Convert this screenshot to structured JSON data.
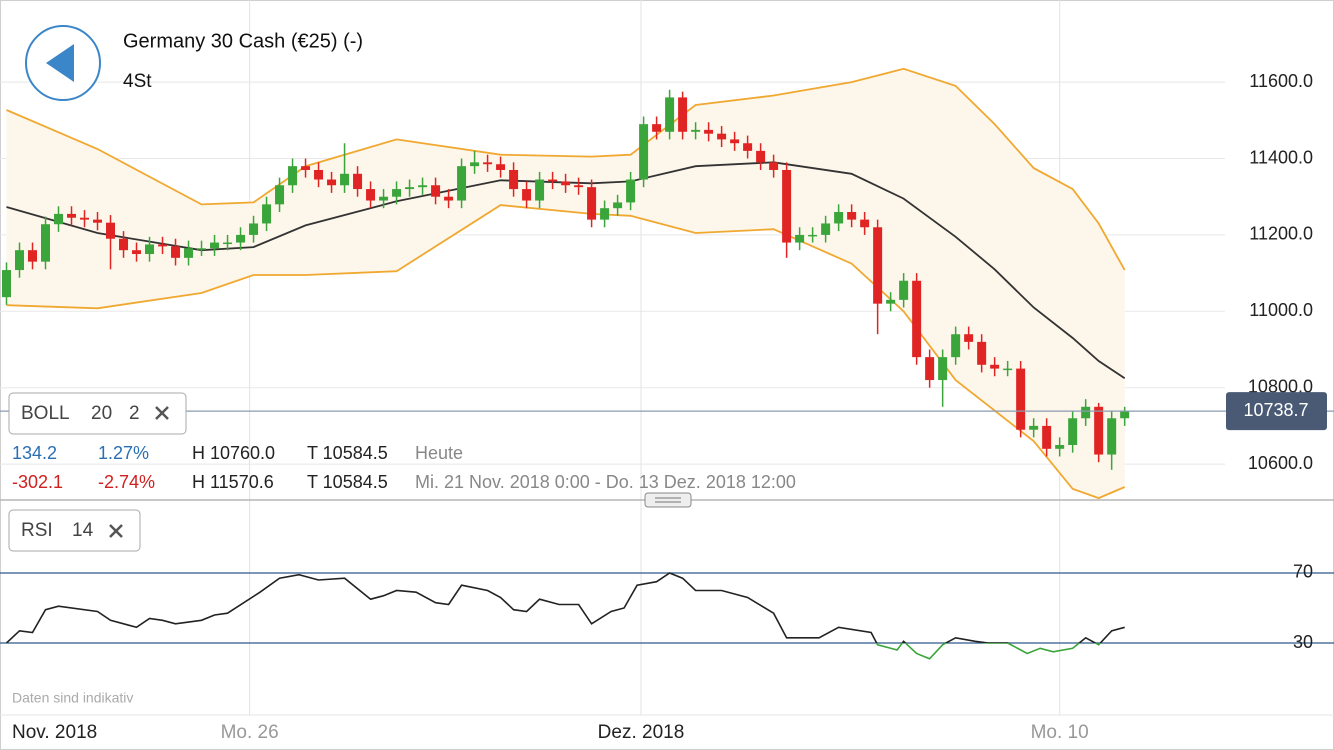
{
  "header": {
    "title": "Germany 30 Cash (€25) (-)",
    "interval": "4St"
  },
  "boll_box": {
    "name": "BOLL",
    "period": 20,
    "stddev": 2
  },
  "rsi_box": {
    "name": "RSI",
    "period": 14
  },
  "info": [
    {
      "change": 134.2,
      "change_pct": "1.27%",
      "high": "H 10760.0",
      "low": "T 10584.5",
      "range": "Heute"
    },
    {
      "change": -302.1,
      "change_pct": "-2.74%",
      "high": "H 11570.6",
      "low": "T 10584.5",
      "range": "Mi. 21 Nov. 2018 0:00 - Do. 13 Dez. 2018 12:00"
    }
  ],
  "note": "Daten sind indikativ",
  "chart_data": [
    {
      "type": "candlestick",
      "up_color": "#3aa53a",
      "down_color": "#e02424",
      "open": [
        11037,
        11108,
        11160,
        11130,
        11228,
        11255,
        11245,
        11240,
        11232,
        11190,
        11160,
        11150,
        11175,
        11170,
        11140,
        11165,
        11165,
        11180,
        11180,
        11200,
        11230,
        11280,
        11330,
        11380,
        11370,
        11345,
        11330,
        11360,
        11320,
        11290,
        11300,
        11320,
        11325,
        11330,
        11300,
        11290,
        11380,
        11390,
        11385,
        11370,
        11320,
        11290,
        11345,
        11340,
        11330,
        11325,
        11240,
        11270,
        11285,
        11345,
        11490,
        11470,
        11560,
        11470,
        11475,
        11465,
        11450,
        11440,
        11420,
        11390,
        11370,
        11180,
        11200,
        11200,
        11230,
        11260,
        11240,
        11220,
        11020,
        11030,
        11080,
        10880,
        10820,
        10880,
        10940,
        10920,
        10860,
        10850,
        10850,
        10690,
        10700,
        10640,
        10650,
        10720,
        10750,
        10625,
        10720
      ],
      "high": [
        11128,
        11180,
        11180,
        11248,
        11275,
        11275,
        11265,
        11260,
        11252,
        11210,
        11180,
        11195,
        11195,
        11190,
        11185,
        11185,
        11200,
        11200,
        11220,
        11250,
        11300,
        11350,
        11400,
        11400,
        11390,
        11365,
        11440,
        11380,
        11340,
        11320,
        11340,
        11345,
        11350,
        11350,
        11320,
        11400,
        11420,
        11410,
        11405,
        11390,
        11340,
        11365,
        11365,
        11360,
        11350,
        11345,
        11290,
        11305,
        11365,
        11510,
        11510,
        11580,
        11575,
        11495,
        11495,
        11485,
        11470,
        11460,
        11440,
        11410,
        11390,
        11220,
        11220,
        11250,
        11280,
        11280,
        11260,
        11240,
        11050,
        11100,
        11100,
        10900,
        10900,
        10960,
        10960,
        10940,
        10880,
        10870,
        10870,
        10720,
        10720,
        10670,
        10740,
        10770,
        10760,
        10740,
        10750
      ],
      "low": [
        11017,
        11088,
        11110,
        11110,
        11208,
        11225,
        11220,
        11212,
        11110,
        11140,
        11130,
        11130,
        11150,
        11120,
        11120,
        11145,
        11145,
        11160,
        11160,
        11180,
        11210,
        11260,
        11310,
        11350,
        11325,
        11310,
        11310,
        11300,
        11270,
        11270,
        11280,
        11300,
        11305,
        11280,
        11270,
        11270,
        11360,
        11365,
        11350,
        11300,
        11270,
        11270,
        11320,
        11310,
        11305,
        11220,
        11220,
        11250,
        11265,
        11325,
        11450,
        11450,
        11450,
        11450,
        11445,
        11430,
        11420,
        11400,
        11370,
        11350,
        11140,
        11160,
        11180,
        11180,
        11210,
        11220,
        11200,
        10940,
        11000,
        11010,
        10860,
        10800,
        10750,
        10860,
        10900,
        10840,
        10830,
        10830,
        10670,
        10670,
        10620,
        10620,
        10630,
        10700,
        10605,
        10585,
        10700
      ],
      "close": [
        11108,
        11160,
        11130,
        11228,
        11255,
        11245,
        11240,
        11232,
        11190,
        11160,
        11150,
        11175,
        11170,
        11140,
        11165,
        11165,
        11180,
        11180,
        11200,
        11230,
        11280,
        11330,
        11380,
        11370,
        11345,
        11330,
        11360,
        11320,
        11290,
        11300,
        11320,
        11325,
        11330,
        11300,
        11290,
        11380,
        11390,
        11385,
        11370,
        11320,
        11290,
        11345,
        11340,
        11330,
        11325,
        11240,
        11270,
        11285,
        11345,
        11490,
        11470,
        11560,
        11470,
        11475,
        11465,
        11450,
        11440,
        11420,
        11390,
        11370,
        11180,
        11200,
        11200,
        11230,
        11260,
        11240,
        11220,
        11020,
        11030,
        11080,
        10880,
        10820,
        10880,
        10940,
        10920,
        10860,
        10850,
        10850,
        10690,
        10700,
        10640,
        10650,
        10720,
        10750,
        10625,
        10720,
        10738.7
      ],
      "overlays": [
        {
          "color": "#f0a830",
          "x": [
            0,
            7,
            15,
            19,
            23,
            30,
            38,
            45,
            48,
            53,
            59,
            65,
            69,
            73,
            76,
            79,
            82,
            84,
            86
          ],
          "values": [
            11527,
            11425,
            11280,
            11285,
            11380,
            11450,
            11410,
            11405,
            11410,
            11540,
            11565,
            11600,
            11635,
            11590,
            11490,
            11375,
            11320,
            11230,
            11108
          ]
        },
        {
          "color": "#333333",
          "x": [
            0,
            7,
            15,
            19,
            23,
            30,
            38,
            45,
            48,
            53,
            59,
            65,
            69,
            73,
            76,
            79,
            82,
            84,
            86
          ],
          "values": [
            11273,
            11205,
            11160,
            11168,
            11225,
            11288,
            11343,
            11335,
            11340,
            11380,
            11390,
            11360,
            11295,
            11195,
            11110,
            11010,
            10930,
            10870,
            10825
          ]
        },
        {
          "color": "#f0a830",
          "x": [
            0,
            7,
            15,
            19,
            23,
            30,
            38,
            45,
            48,
            53,
            59,
            65,
            69,
            73,
            76,
            79,
            82,
            84,
            86
          ],
          "values": [
            11016,
            11008,
            11048,
            11095,
            11095,
            11105,
            11278,
            11255,
            11250,
            11205,
            11215,
            11125,
            11000,
            10820,
            10740,
            10660,
            10535,
            10511,
            10540
          ]
        }
      ],
      "band_fill": "#fdf6ea",
      "xlim": [
        -0.5,
        102.1
      ],
      "ylim": [
        10506,
        11815
      ],
      "yticks": [
        {
          "value": 10600,
          "label": "10600.0"
        },
        {
          "value": 10800,
          "label": "10800.0"
        },
        {
          "value": 11000,
          "label": "11000.0"
        },
        {
          "value": 11200,
          "label": "11200.0"
        },
        {
          "value": 11400,
          "label": "11400.0"
        },
        {
          "value": 11600,
          "label": "11600.0"
        }
      ],
      "xticks": [
        {
          "value": 18.7,
          "label": "Mo. 26"
        },
        {
          "value": 81,
          "label": "Mo. 10"
        }
      ],
      "month_ticks": [
        {
          "value": 48.8,
          "label": "Dez. 2018"
        }
      ],
      "period_label": "Nov. 2018",
      "grid": true
    },
    {
      "type": "line",
      "color": "#222222",
      "below_color": "#3aa53a",
      "level_color": "#2f5b8a",
      "x": [
        0,
        1,
        2,
        3,
        4,
        7,
        8,
        10,
        11,
        12,
        13,
        15,
        16,
        17,
        19.5,
        21,
        22.5,
        24,
        26,
        28,
        29,
        30,
        31.5,
        33,
        34,
        35,
        37,
        38,
        39,
        40,
        41,
        42.5,
        44,
        45,
        46.5,
        47.5,
        48.5,
        50,
        51,
        52,
        53,
        55,
        57,
        59,
        60,
        62.5,
        64,
        66.5,
        67,
        68.5,
        69,
        70,
        71,
        72,
        73,
        74.5,
        75.5,
        77,
        78.5,
        79.5,
        80.5,
        82,
        83,
        84,
        85,
        86
      ],
      "values": [
        30,
        37,
        36,
        49,
        51,
        48,
        43,
        39,
        44,
        43,
        41,
        43,
        46,
        47,
        59,
        67,
        69,
        66,
        67,
        55,
        57,
        60,
        59,
        53,
        52,
        63,
        60,
        56,
        49,
        48,
        55,
        52,
        52,
        41,
        48,
        50,
        63,
        65,
        70,
        67,
        60,
        60,
        56,
        47,
        33,
        33,
        39,
        36,
        29,
        26,
        31,
        24,
        21,
        29,
        33,
        31,
        30,
        30,
        24,
        27,
        25,
        27,
        33,
        29,
        37,
        39
      ],
      "ylim": [
        -11.1,
        103.1
      ],
      "yticks": [
        30,
        70
      ]
    }
  ]
}
